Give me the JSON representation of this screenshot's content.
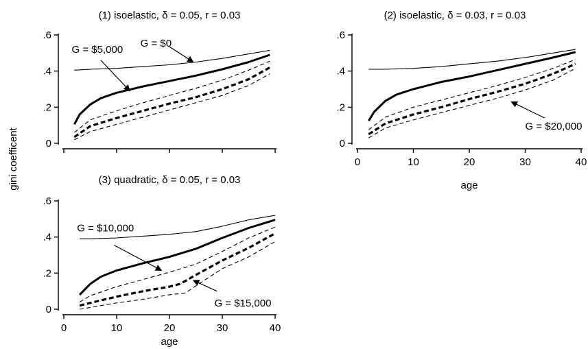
{
  "figure": {
    "ylabel": "gini coefficent",
    "colors": {
      "ink": "#000000",
      "background": "#ffffff"
    }
  },
  "chart_data": [
    {
      "type": "line",
      "title": "(1) isoelastic, δ = 0.05, r = 0.03",
      "xlabel": "",
      "ylabel": "gini coefficent",
      "xlim": [
        0,
        40
      ],
      "ylim": [
        0,
        0.6
      ],
      "xticks": [],
      "yticks": [
        {
          "v": 0,
          "label": "0"
        },
        {
          "v": 0.2,
          "label": ".2"
        },
        {
          "v": 0.4,
          "label": ".4"
        },
        {
          "v": 0.6,
          "label": ".6"
        }
      ],
      "series": [
        {
          "style": "thin-solid",
          "x": [
            2,
            5,
            10,
            15,
            20,
            25,
            30,
            35,
            39
          ],
          "y": [
            0.405,
            0.41,
            0.415,
            0.425,
            0.435,
            0.45,
            0.47,
            0.495,
            0.515
          ]
        },
        {
          "style": "thick-solid",
          "x": [
            2,
            3,
            5,
            7,
            10,
            15,
            20,
            25,
            30,
            35,
            39
          ],
          "y": [
            0.105,
            0.16,
            0.215,
            0.25,
            0.28,
            0.315,
            0.345,
            0.375,
            0.41,
            0.45,
            0.49
          ]
        },
        {
          "style": "thin-dashed",
          "x": [
            2,
            5,
            10,
            15,
            20,
            25,
            30,
            35,
            39
          ],
          "y": [
            0.06,
            0.13,
            0.18,
            0.225,
            0.265,
            0.305,
            0.35,
            0.405,
            0.455
          ]
        },
        {
          "style": "thick-dashed",
          "x": [
            2,
            5,
            10,
            15,
            20,
            25,
            30,
            35,
            39
          ],
          "y": [
            0.035,
            0.095,
            0.14,
            0.18,
            0.22,
            0.255,
            0.3,
            0.355,
            0.42
          ]
        },
        {
          "style": "thin-dashed",
          "x": [
            2,
            5,
            10,
            15,
            20,
            25,
            30,
            35,
            39
          ],
          "y": [
            0.02,
            0.065,
            0.105,
            0.145,
            0.185,
            0.225,
            0.265,
            0.32,
            0.385
          ]
        }
      ],
      "annotations": [
        {
          "text": "G = $0",
          "tx": 14.5,
          "ty": 0.555,
          "ax1": 20,
          "ay1": 0.535,
          "ax2": 24.5,
          "ay2": 0.45
        },
        {
          "text": "G = $5,000",
          "tx": 1.5,
          "ty": 0.52,
          "ax1": 7,
          "ay1": 0.46,
          "ax2": 12.5,
          "ay2": 0.29
        }
      ]
    },
    {
      "type": "line",
      "title": "(2) isoelastic, δ = 0.03, r = 0.03",
      "xlabel": "age",
      "ylabel": "",
      "xlim": [
        0,
        40
      ],
      "ylim": [
        0,
        0.6
      ],
      "xticks": [
        {
          "v": 0,
          "label": "0"
        },
        {
          "v": 10,
          "label": "10"
        },
        {
          "v": 20,
          "label": "20"
        },
        {
          "v": 30,
          "label": "30"
        },
        {
          "v": 40,
          "label": "40"
        }
      ],
      "yticks": [
        {
          "v": 0,
          "label": "0"
        },
        {
          "v": 0.2,
          "label": ".2"
        },
        {
          "v": 0.4,
          "label": ".4"
        },
        {
          "v": 0.6,
          "label": ".6"
        }
      ],
      "series": [
        {
          "style": "thin-solid",
          "x": [
            2,
            5,
            10,
            15,
            20,
            25,
            30,
            35,
            39
          ],
          "y": [
            0.41,
            0.41,
            0.415,
            0.425,
            0.44,
            0.455,
            0.475,
            0.5,
            0.52
          ]
        },
        {
          "style": "thick-solid",
          "x": [
            2,
            3,
            5,
            7,
            10,
            15,
            20,
            25,
            30,
            35,
            39
          ],
          "y": [
            0.125,
            0.175,
            0.235,
            0.27,
            0.3,
            0.34,
            0.37,
            0.405,
            0.44,
            0.475,
            0.505
          ]
        },
        {
          "style": "thin-dashed",
          "x": [
            2,
            5,
            10,
            15,
            20,
            25,
            30,
            35,
            39
          ],
          "y": [
            0.075,
            0.145,
            0.2,
            0.24,
            0.28,
            0.32,
            0.365,
            0.415,
            0.465
          ]
        },
        {
          "style": "thick-dashed",
          "x": [
            2,
            5,
            10,
            15,
            20,
            25,
            30,
            35,
            39
          ],
          "y": [
            0.05,
            0.11,
            0.16,
            0.2,
            0.245,
            0.285,
            0.33,
            0.385,
            0.44
          ]
        },
        {
          "style": "thin-dashed",
          "x": [
            2,
            5,
            10,
            15,
            20,
            25,
            30,
            35,
            39
          ],
          "y": [
            0.03,
            0.085,
            0.13,
            0.17,
            0.21,
            0.25,
            0.295,
            0.35,
            0.415
          ]
        }
      ],
      "annotations": [
        {
          "text": "G = $20,000",
          "tx": 30,
          "ty": 0.095,
          "ax1": 33.5,
          "ay1": 0.14,
          "ax2": 27.5,
          "ay2": 0.23
        }
      ]
    },
    {
      "type": "line",
      "title": "(3) quadratic, δ = 0.05, r = 0.03",
      "xlabel": "age",
      "ylabel": "",
      "xlim": [
        0,
        40
      ],
      "ylim": [
        0,
        0.6
      ],
      "xticks": [
        {
          "v": 0,
          "label": "0"
        },
        {
          "v": 10,
          "label": "10"
        },
        {
          "v": 20,
          "label": "20"
        },
        {
          "v": 30,
          "label": "30"
        },
        {
          "v": 40,
          "label": "40"
        }
      ],
      "yticks": [
        {
          "v": 0,
          "label": "0"
        },
        {
          "v": 0.2,
          "label": ".2"
        },
        {
          "v": 0.4,
          "label": ".4"
        },
        {
          "v": 0.6,
          "label": ".6"
        }
      ],
      "series": [
        {
          "style": "thin-solid",
          "x": [
            3,
            5,
            10,
            15,
            20,
            25,
            30,
            35,
            40
          ],
          "y": [
            0.39,
            0.39,
            0.395,
            0.405,
            0.415,
            0.43,
            0.46,
            0.495,
            0.52
          ]
        },
        {
          "style": "thick-solid",
          "x": [
            3,
            5,
            7,
            10,
            15,
            20,
            25,
            30,
            35,
            40
          ],
          "y": [
            0.08,
            0.14,
            0.18,
            0.215,
            0.255,
            0.29,
            0.335,
            0.395,
            0.45,
            0.495
          ]
        },
        {
          "style": "thin-dashed",
          "x": [
            3,
            5,
            10,
            15,
            20,
            25,
            30,
            35,
            40
          ],
          "y": [
            0.04,
            0.075,
            0.125,
            0.165,
            0.205,
            0.25,
            0.32,
            0.395,
            0.455
          ]
        },
        {
          "style": "thick-dashed",
          "x": [
            3,
            5,
            10,
            15,
            20,
            22,
            25,
            30,
            35,
            40
          ],
          "y": [
            0.02,
            0.035,
            0.07,
            0.1,
            0.125,
            0.14,
            0.19,
            0.27,
            0.34,
            0.42
          ]
        },
        {
          "style": "thin-dashed",
          "x": [
            3,
            5,
            10,
            15,
            20,
            23,
            25,
            30,
            35,
            40
          ],
          "y": [
            0.0,
            0.01,
            0.035,
            0.055,
            0.08,
            0.09,
            0.13,
            0.225,
            0.29,
            0.375
          ]
        }
      ],
      "annotations": [
        {
          "text": "G = $10,000",
          "tx": 2.5,
          "ty": 0.45,
          "ax1": 9.5,
          "ay1": 0.355,
          "ax2": 18.5,
          "ay2": 0.215
        },
        {
          "text": "G = $15,000",
          "tx": 28.5,
          "ty": 0.035,
          "ax1": 29,
          "ay1": 0.1,
          "ax2": 24.5,
          "ay2": 0.16
        }
      ]
    }
  ]
}
